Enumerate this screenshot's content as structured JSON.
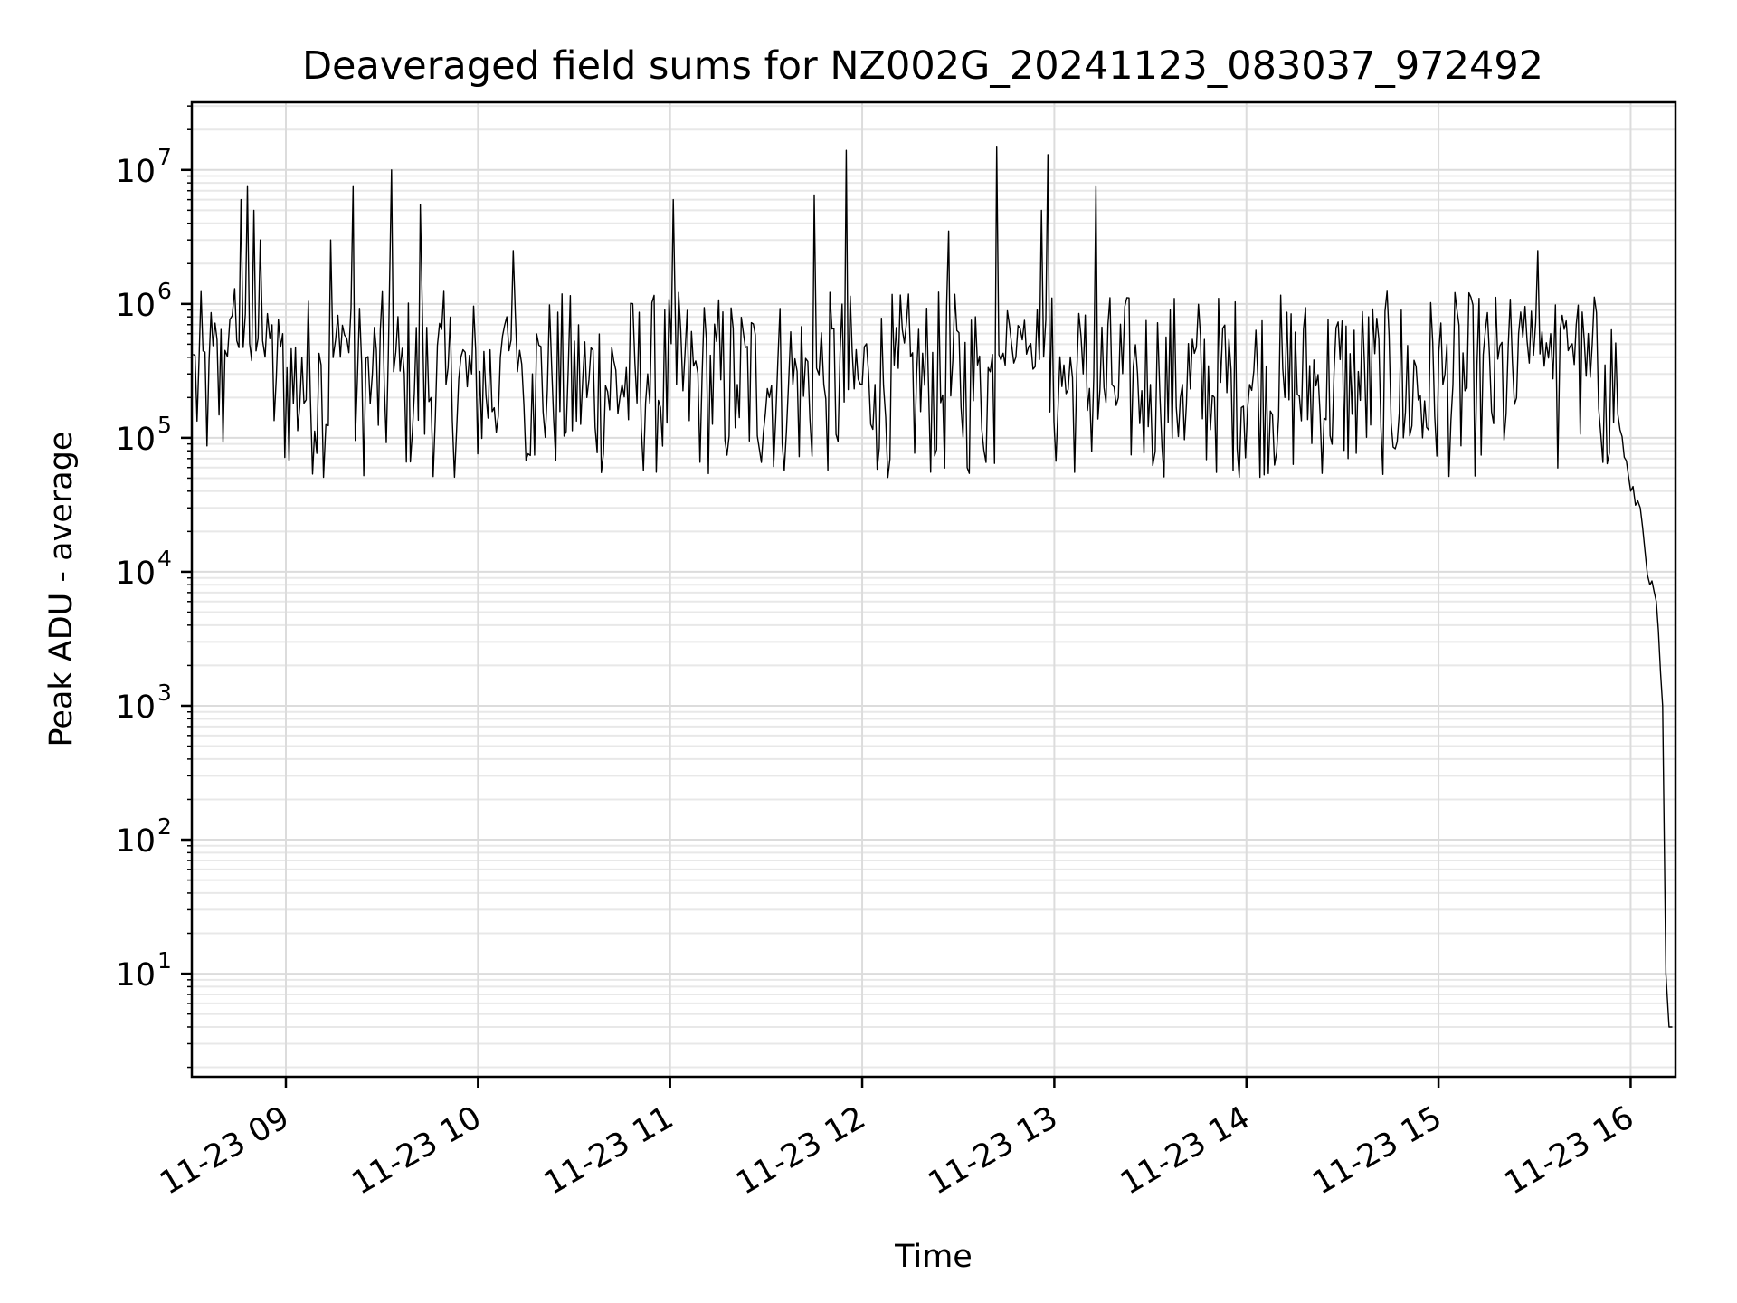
{
  "chart_data": {
    "type": "line",
    "title": "Deaveraged field sums for NZ002G_20241123_083037_972492",
    "xlabel": "Time",
    "ylabel": "Peak ADU - average",
    "yscale": "log",
    "ylim": [
      1.7,
      32000000
    ],
    "xlim": [
      "2024-11-23 08:30:37",
      "2024-11-23 16:14:00"
    ],
    "grid": "on (major and minor)",
    "x_tick_labels": [
      "11-23 09",
      "11-23 10",
      "11-23 11",
      "11-23 12",
      "11-23 13",
      "11-23 14",
      "11-23 15",
      "11-23 16"
    ],
    "y_tick_labels": [
      {
        "base": "10",
        "exp": "1",
        "value": 10
      },
      {
        "base": "10",
        "exp": "2",
        "value": 100
      },
      {
        "base": "10",
        "exp": "3",
        "value": 1000
      },
      {
        "base": "10",
        "exp": "4",
        "value": 10000
      },
      {
        "base": "10",
        "exp": "5",
        "value": 100000
      },
      {
        "base": "10",
        "exp": "6",
        "value": 1000000
      },
      {
        "base": "10",
        "exp": "7",
        "value": 10000000
      }
    ],
    "series": [
      {
        "color": "#000000",
        "x": [
          "2024-11-23 08:31",
          "2024-11-23 08:36",
          "2024-11-23 08:41",
          "2024-11-23 08:44",
          "2024-11-23 08:46",
          "2024-11-23 08:48",
          "2024-11-23 08:50",
          "2024-11-23 08:52",
          "2024-11-23 08:55",
          "2024-11-23 08:59",
          "2024-11-23 09:05",
          "2024-11-23 09:11",
          "2024-11-23 09:14",
          "2024-11-23 09:17",
          "2024-11-23 09:21",
          "2024-11-23 09:27",
          "2024-11-23 09:32",
          "2024-11-23 09:33",
          "2024-11-23 09:37",
          "2024-11-23 09:42",
          "2024-11-23 09:50",
          "2024-11-23 09:58",
          "2024-11-23 10:07",
          "2024-11-23 10:11",
          "2024-11-23 10:13",
          "2024-11-23 10:17",
          "2024-11-23 10:23",
          "2024-11-23 10:34",
          "2024-11-23 10:45",
          "2024-11-23 10:53",
          "2024-11-23 11:01",
          "2024-11-23 11:02",
          "2024-11-23 11:10",
          "2024-11-23 11:21",
          "2024-11-23 11:31",
          "2024-11-23 11:37",
          "2024-11-23 11:45",
          "2024-11-23 11:48",
          "2024-11-23 11:55",
          "2024-11-23 12:00",
          "2024-11-23 12:02",
          "2024-11-23 12:04",
          "2024-11-23 12:10",
          "2024-11-23 12:17",
          "2024-11-23 12:27",
          "2024-11-23 12:36",
          "2024-11-23 12:42",
          "2024-11-23 12:48",
          "2024-11-23 12:56",
          "2024-11-23 12:58",
          "2024-11-23 13:03",
          "2024-11-23 13:09",
          "2024-11-23 13:13",
          "2024-11-23 13:18",
          "2024-11-23 13:26",
          "2024-11-23 13:30",
          "2024-11-23 13:33",
          "2024-11-23 13:40",
          "2024-11-23 13:50",
          "2024-11-23 14:01",
          "2024-11-23 14:12",
          "2024-11-23 14:23",
          "2024-11-23 14:33",
          "2024-11-23 14:42",
          "2024-11-23 14:49",
          "2024-11-23 14:55",
          "2024-11-23 15:02",
          "2024-11-23 15:12",
          "2024-11-23 15:25",
          "2024-11-23 15:31",
          "2024-11-23 15:35",
          "2024-11-23 15:38",
          "2024-11-23 15:43",
          "2024-11-23 15:48",
          "2024-11-23 15:52",
          "2024-11-23 15:56",
          "2024-11-23 16:00",
          "2024-11-23 16:03",
          "2024-11-23 16:06",
          "2024-11-23 16:08",
          "2024-11-23 16:10",
          "2024-11-23 16:11",
          "2024-11-23 16:12",
          "2024-11-23 16:13"
        ],
        "y": [
          420000,
          380000,
          450000,
          1300000,
          6000000,
          7500000,
          5000000,
          3000000,
          550000,
          600000,
          400000,
          350000,
          3000000,
          400000,
          7500000,
          300000,
          400000,
          10000000,
          300000,
          5500000,
          250000,
          300000,
          400000,
          2500000,
          450000,
          300000,
          350000,
          200000,
          250000,
          300000,
          6000000,
          250000,
          300000,
          250000,
          200000,
          250000,
          6500000,
          250000,
          14000000,
          250000,
          300000,
          250000,
          350000,
          300000,
          3500000,
          350000,
          15000000,
          400000,
          5000000,
          13000000,
          350000,
          300000,
          7500000,
          250000,
          300000,
          250000,
          200000,
          250000,
          200000,
          250000,
          200000,
          150000,
          150000,
          120000,
          100000,
          100000,
          300000,
          350000,
          600000,
          2500000,
          600000,
          650000,
          700000,
          500000,
          350000,
          150000,
          40000,
          30000,
          8000,
          6000,
          1000,
          10,
          4,
          4
        ]
      }
    ]
  }
}
